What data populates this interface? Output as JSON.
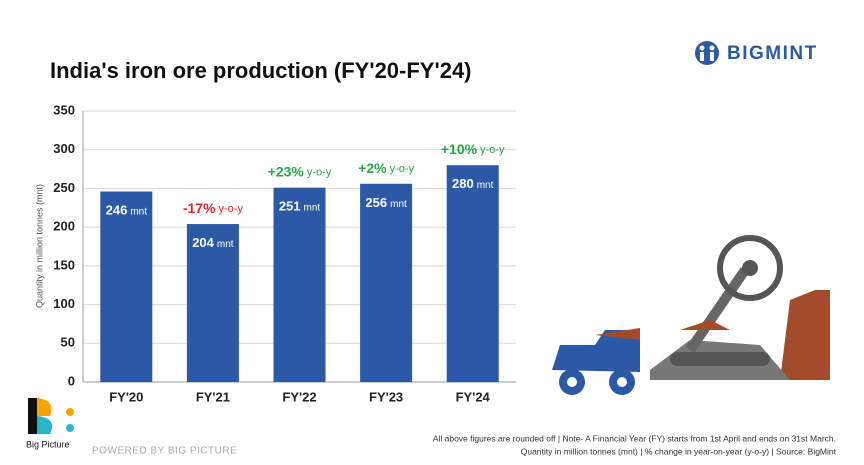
{
  "chart_data": {
    "type": "bar",
    "title": "India's iron ore production (FY'20-FY'24)",
    "y_label": "Quantity in million tonnes (mnt)",
    "categories": [
      "FY'20",
      "FY'21",
      "FY'22",
      "FY'23",
      "FY'24"
    ],
    "values": [
      246,
      204,
      251,
      256,
      280
    ],
    "unit": "mnt",
    "yoy_changes": [
      null,
      "-17%",
      "+23%",
      "+2%",
      "+10%"
    ],
    "yoy_suffix": "y-o-y",
    "color": "#2b59a6",
    "ylim": [
      0,
      350
    ],
    "yticks": [
      0,
      50,
      100,
      150,
      200,
      250,
      300,
      350
    ],
    "grid": true
  },
  "brand": "BIGMINT",
  "footer": {
    "logo": "Big Picture",
    "powered": "POWERED BY BIG PICTURE",
    "note1": "All above figures are rounded off | Note- A Financial Year (FY) starts from 1st April and ends on 31st March.",
    "note2": "Quantity in million tonnes (mnt) | % change in year-on-year (y-o-y) | Source: BigMint"
  }
}
